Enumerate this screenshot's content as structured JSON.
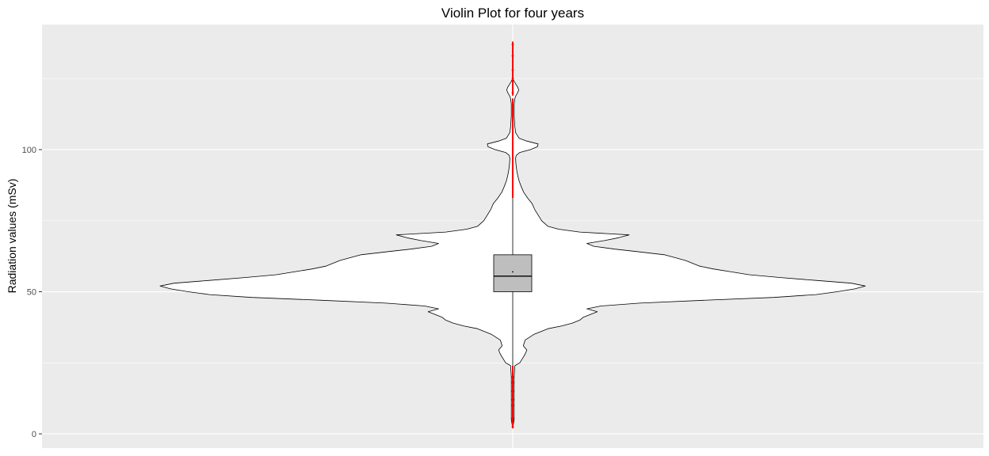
{
  "chart_data": {
    "type": "violin",
    "title": "Violin Plot for four years",
    "xlabel": "",
    "ylabel": "Radiation values (mSv)",
    "ylim": [
      -5,
      144
    ],
    "y_ticks": [
      0,
      50,
      100
    ],
    "y_tick_labels": [
      "0",
      "50",
      "100"
    ],
    "grid": true,
    "legend": "none",
    "colors": {
      "panel_background": "#ebebeb",
      "grid_major": "#ffffff",
      "violin_fill": "#ffffff",
      "violin_outline": "#000000",
      "box_fill": "#bebebe",
      "box_outline": "#000000",
      "outlier_color": "#ff0000"
    },
    "violin": {
      "relative_width_by_value": [
        [
          2,
          0.0
        ],
        [
          5,
          0.004
        ],
        [
          10,
          0.004
        ],
        [
          15,
          0.004
        ],
        [
          20,
          0.004
        ],
        [
          24,
          0.006
        ],
        [
          25,
          0.02
        ],
        [
          27,
          0.03
        ],
        [
          28,
          0.035
        ],
        [
          29.5,
          0.04
        ],
        [
          31,
          0.03
        ],
        [
          33,
          0.035
        ],
        [
          35,
          0.06
        ],
        [
          37,
          0.1
        ],
        [
          38,
          0.14
        ],
        [
          39,
          0.17
        ],
        [
          40,
          0.19
        ],
        [
          41,
          0.2
        ],
        [
          42,
          0.22
        ],
        [
          43,
          0.24
        ],
        [
          44,
          0.21
        ],
        [
          45,
          0.25
        ],
        [
          46,
          0.36
        ],
        [
          47,
          0.54
        ],
        [
          48,
          0.74
        ],
        [
          49,
          0.86
        ],
        [
          50,
          0.92
        ],
        [
          51,
          0.97
        ],
        [
          52,
          1.0
        ],
        [
          53,
          0.96
        ],
        [
          54,
          0.86
        ],
        [
          55,
          0.76
        ],
        [
          56,
          0.67
        ],
        [
          57,
          0.62
        ],
        [
          58,
          0.57
        ],
        [
          59,
          0.53
        ],
        [
          60,
          0.51
        ],
        [
          61,
          0.49
        ],
        [
          62,
          0.46
        ],
        [
          63,
          0.43
        ],
        [
          64,
          0.36
        ],
        [
          65,
          0.29
        ],
        [
          66,
          0.23
        ],
        [
          67,
          0.21
        ],
        [
          68,
          0.26
        ],
        [
          69,
          0.3
        ],
        [
          70,
          0.33
        ],
        [
          71,
          0.19
        ],
        [
          72,
          0.13
        ],
        [
          73,
          0.1
        ],
        [
          75,
          0.082
        ],
        [
          77,
          0.072
        ],
        [
          79,
          0.062
        ],
        [
          81,
          0.055
        ],
        [
          83,
          0.042
        ],
        [
          85,
          0.031
        ],
        [
          87,
          0.024
        ],
        [
          89,
          0.018
        ],
        [
          91,
          0.014
        ],
        [
          93,
          0.011
        ],
        [
          95,
          0.009
        ],
        [
          97,
          0.008
        ],
        [
          98,
          0.01
        ],
        [
          99,
          0.02
        ],
        [
          100,
          0.05
        ],
        [
          101,
          0.07
        ],
        [
          102,
          0.072
        ],
        [
          103,
          0.04
        ],
        [
          104,
          0.018
        ],
        [
          106,
          0.008
        ],
        [
          108,
          0.006
        ],
        [
          110,
          0.005
        ],
        [
          112,
          0.004
        ],
        [
          114,
          0.004
        ],
        [
          116,
          0.004
        ],
        [
          118,
          0.006
        ],
        [
          119,
          0.009
        ],
        [
          120,
          0.014
        ],
        [
          121,
          0.017
        ],
        [
          122,
          0.014
        ],
        [
          123,
          0.009
        ],
        [
          124,
          0.004
        ],
        [
          125,
          0.0
        ]
      ]
    },
    "boxplot": {
      "lower_whisker": 24,
      "q1": 50,
      "median": 55.5,
      "q3": 63,
      "upper_whisker": 83,
      "mean": 57
    },
    "outlier_ranges": [
      [
        2,
        24
      ],
      [
        83,
        118
      ],
      [
        119,
        138
      ]
    ]
  }
}
